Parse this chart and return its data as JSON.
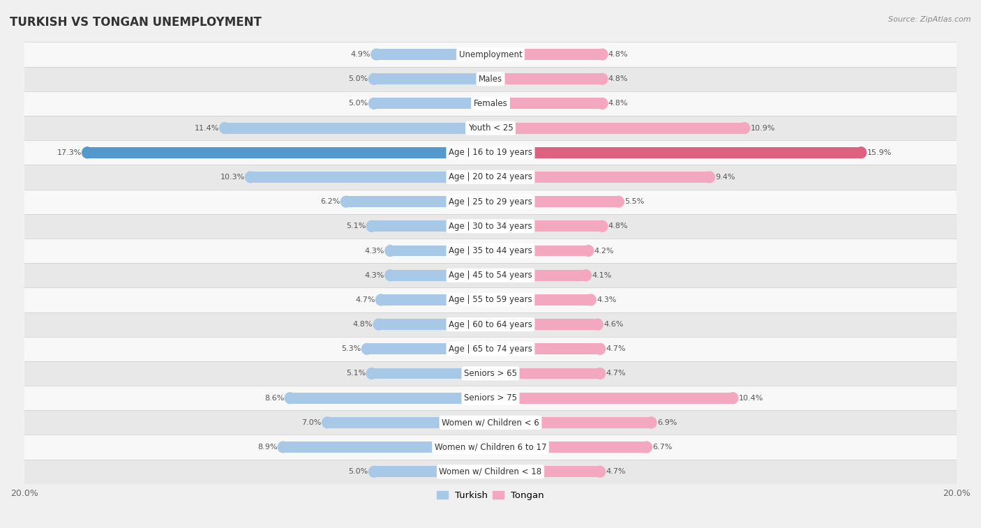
{
  "title": "TURKISH VS TONGAN UNEMPLOYMENT",
  "source": "Source: ZipAtlas.com",
  "categories": [
    "Unemployment",
    "Males",
    "Females",
    "Youth < 25",
    "Age | 16 to 19 years",
    "Age | 20 to 24 years",
    "Age | 25 to 29 years",
    "Age | 30 to 34 years",
    "Age | 35 to 44 years",
    "Age | 45 to 54 years",
    "Age | 55 to 59 years",
    "Age | 60 to 64 years",
    "Age | 65 to 74 years",
    "Seniors > 65",
    "Seniors > 75",
    "Women w/ Children < 6",
    "Women w/ Children 6 to 17",
    "Women w/ Children < 18"
  ],
  "turkish": [
    4.9,
    5.0,
    5.0,
    11.4,
    17.3,
    10.3,
    6.2,
    5.1,
    4.3,
    4.3,
    4.7,
    4.8,
    5.3,
    5.1,
    8.6,
    7.0,
    8.9,
    5.0
  ],
  "tongan": [
    4.8,
    4.8,
    4.8,
    10.9,
    15.9,
    9.4,
    5.5,
    4.8,
    4.2,
    4.1,
    4.3,
    4.6,
    4.7,
    4.7,
    10.4,
    6.9,
    6.7,
    4.7
  ],
  "turkish_color": "#a8c8e8",
  "tongan_color": "#f4a8c0",
  "turkish_highlight_color": "#5599cc",
  "tongan_highlight_color": "#e06080",
  "background_color": "#f0f0f0",
  "row_odd_color": "#f8f8f8",
  "row_even_color": "#e8e8e8",
  "xlim": 20.0,
  "bar_height": 0.45,
  "label_fontsize": 8.0,
  "category_fontsize": 8.5,
  "title_fontsize": 12,
  "value_color": "#555555"
}
